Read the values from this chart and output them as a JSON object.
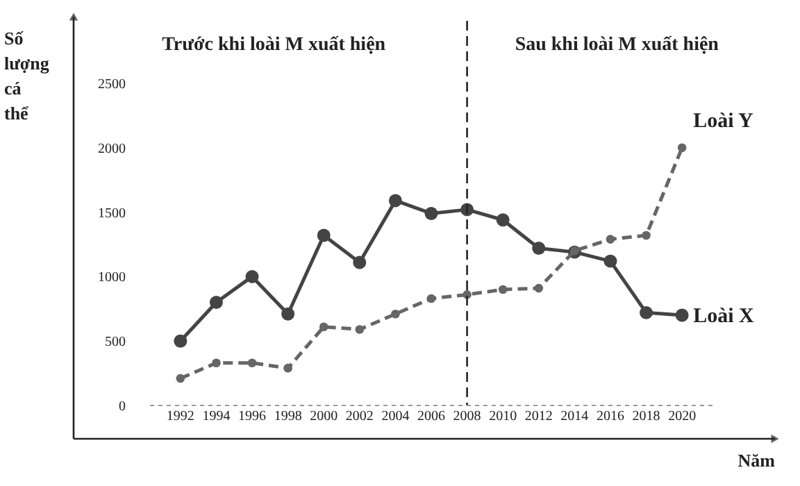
{
  "chart_data": {
    "type": "line",
    "xlabel": "Năm",
    "ylabel": "Số lượng cá thể",
    "categories": [
      "1992",
      "1994",
      "1996",
      "1998",
      "2000",
      "2002",
      "2004",
      "2006",
      "2008",
      "2010",
      "2012",
      "2014",
      "2016",
      "2018",
      "2020"
    ],
    "series": [
      {
        "name": "Loài X",
        "color": "#444444",
        "line_style": "solid",
        "values": [
          500,
          800,
          1000,
          710,
          1320,
          1110,
          1590,
          1490,
          1520,
          1440,
          1220,
          1190,
          1120,
          720,
          700
        ]
      },
      {
        "name": "Loài Y",
        "color": "#666666",
        "line_style": "dashed",
        "values": [
          210,
          330,
          330,
          290,
          610,
          590,
          710,
          830,
          860,
          900,
          910,
          1200,
          1290,
          1320,
          2000
        ]
      }
    ],
    "ylim": [
      0,
      2500
    ],
    "yticks": [
      0,
      500,
      1000,
      1500,
      2000,
      2500
    ],
    "ref_lines": [
      {
        "axis": "x",
        "value": "2008",
        "line_style": "dashed",
        "color": "#222222"
      }
    ],
    "annotations": [
      "Trước khi loài M xuất hiện",
      "Sau khi loài M xuất hiện"
    ],
    "marker": "circle",
    "grid": false,
    "legend": false
  }
}
